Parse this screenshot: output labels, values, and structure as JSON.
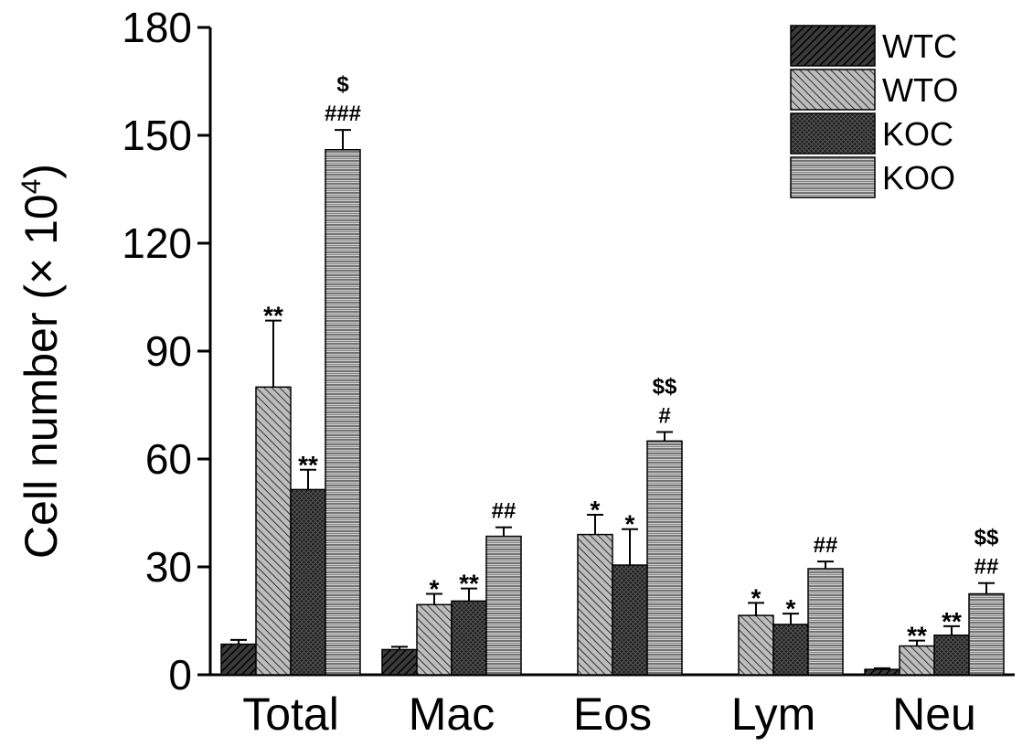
{
  "chart_data": {
    "type": "bar",
    "ylabel_main": "Cell number (× 10",
    "ylabel_sup": "4",
    "ylabel_end": ")",
    "xlabel": "",
    "ylim": [
      0,
      180
    ],
    "yticks": [
      0,
      30,
      60,
      90,
      120,
      150,
      180
    ],
    "categories": [
      "Total",
      "Mac",
      "Eos",
      "Lym",
      "Neu"
    ],
    "legend_position": "top-right",
    "series": [
      {
        "name": "WTC",
        "pattern": "dark-diagonal",
        "values": [
          8.5,
          7,
          0,
          0,
          1.5
        ],
        "errors": [
          1.2,
          0.8,
          0,
          0,
          0.3
        ],
        "labels": [
          "",
          "",
          "",
          "",
          ""
        ]
      },
      {
        "name": "WTO",
        "pattern": "light-diagonal",
        "values": [
          80,
          19.5,
          39,
          16.5,
          8
        ],
        "errors": [
          18.5,
          3,
          5.5,
          3.5,
          1.5
        ],
        "labels": [
          "**",
          "*",
          "*",
          "*",
          "**"
        ]
      },
      {
        "name": "KOC",
        "pattern": "dark-crosshatch",
        "values": [
          51.5,
          20.5,
          30.5,
          14,
          11
        ],
        "errors": [
          5.5,
          3.5,
          10,
          3,
          2.5
        ],
        "labels": [
          "**",
          "**",
          "*",
          "*",
          "**"
        ]
      },
      {
        "name": "KOO",
        "pattern": "horizontal-lines",
        "values": [
          146,
          38.5,
          65,
          29.5,
          22.5
        ],
        "errors": [
          5.5,
          2.5,
          2.5,
          2,
          3
        ],
        "labels": [
          "$\n###",
          "##",
          "$$\n#",
          "##",
          "$$\n##"
        ]
      }
    ]
  }
}
